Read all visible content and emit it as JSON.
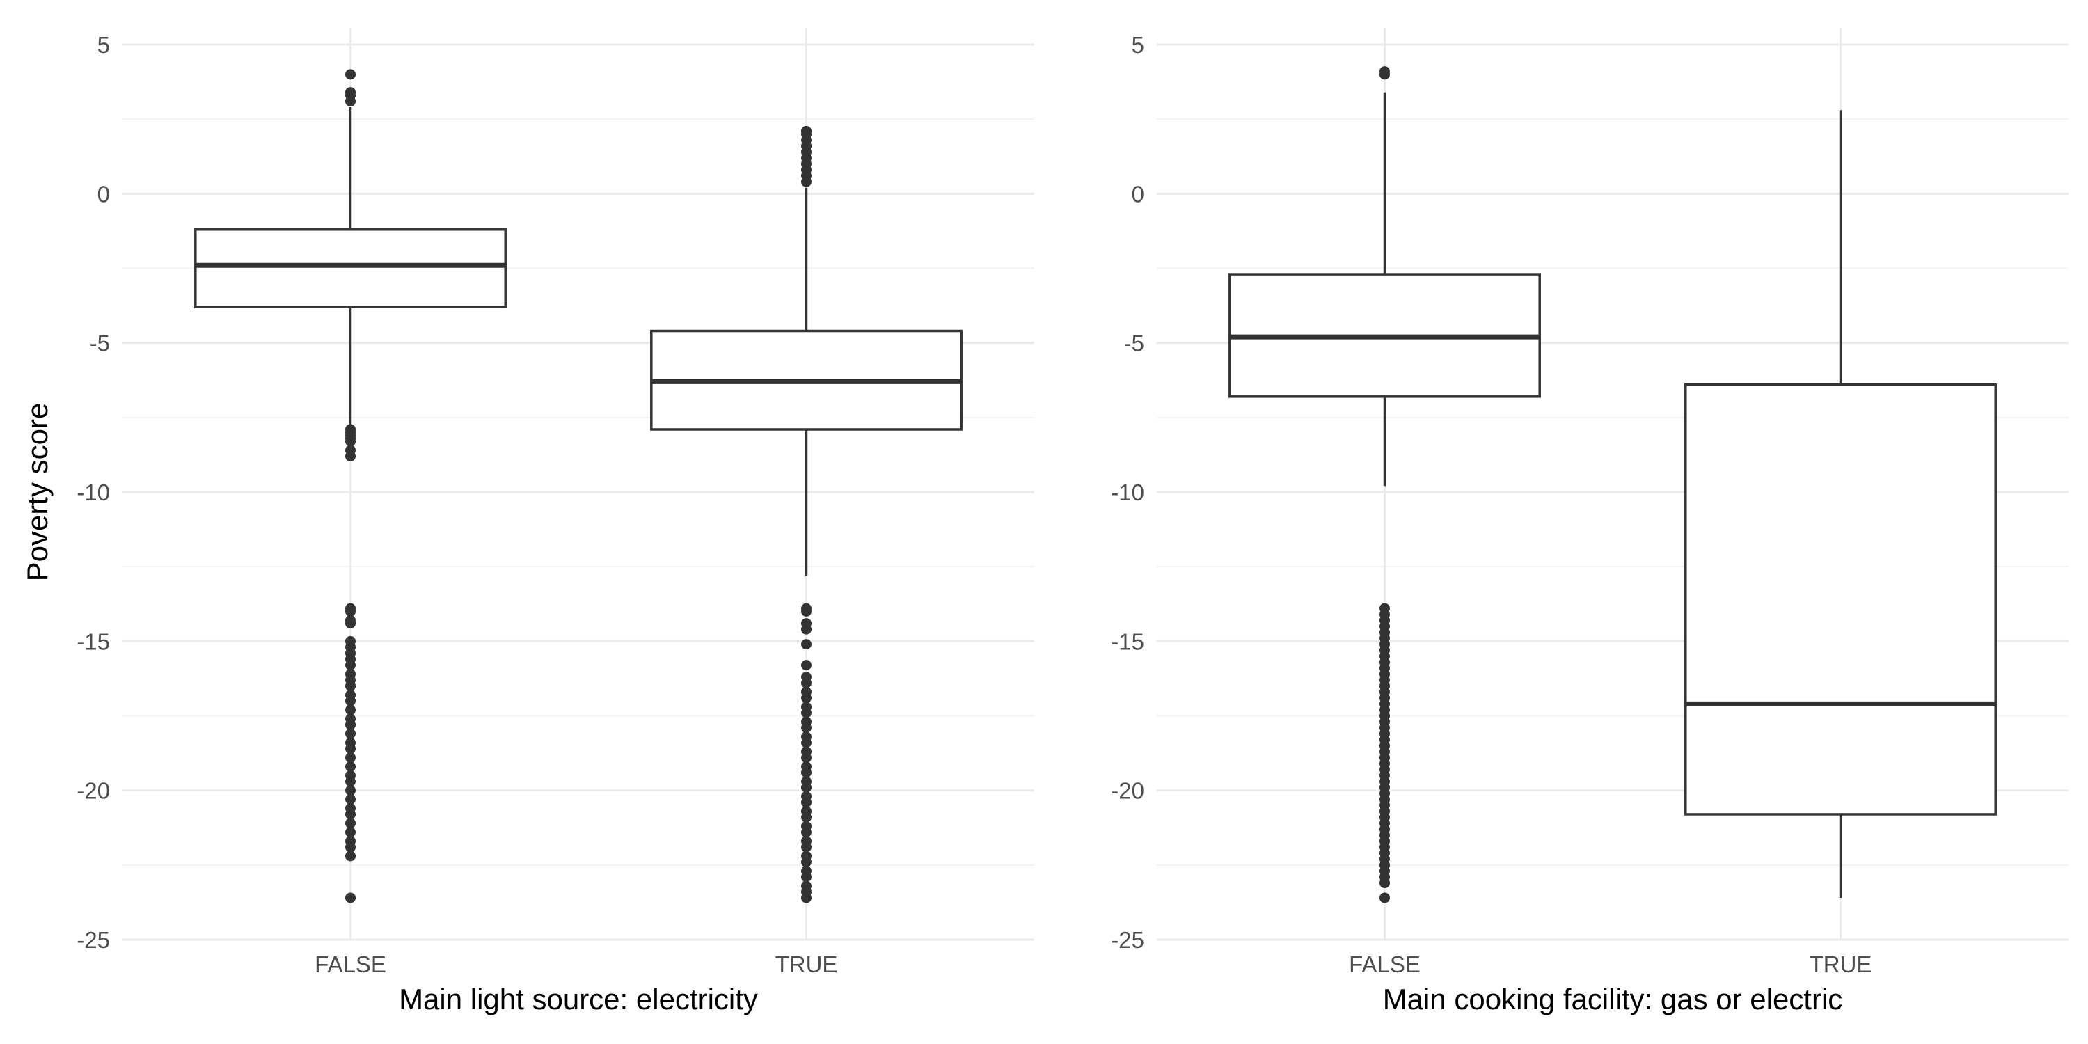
{
  "colors": {
    "grid_major": "#ebebeb",
    "grid_minor": "#f3f3f3",
    "box_stroke": "#333333",
    "outlier": "#333333",
    "background": "#ffffff"
  },
  "chart_data": [
    {
      "type": "boxplot",
      "xlabel": "Main light source: electricity",
      "ylabel": "Poverty score",
      "categories": [
        "FALSE",
        "TRUE"
      ],
      "ylim": [
        -25,
        5
      ],
      "yticks": [
        5,
        0,
        -5,
        -10,
        -15,
        -20,
        -25
      ],
      "grid": true,
      "boxes": [
        {
          "category": "FALSE",
          "lower_whisker": -8.7,
          "q1": -3.8,
          "median": -2.4,
          "q3": -1.2,
          "upper_whisker": 2.9,
          "outliers": [
            4.0,
            3.4,
            3.3,
            3.1,
            -7.9,
            -8.0,
            -8.1,
            -8.2,
            -8.3,
            -8.6,
            -8.8,
            -13.9,
            -14.0,
            -14.3,
            -14.4,
            -15.0,
            -15.2,
            -15.4,
            -15.6,
            -15.8,
            -16.1,
            -16.3,
            -16.5,
            -16.8,
            -17.0,
            -17.3,
            -17.6,
            -17.8,
            -18.1,
            -18.4,
            -18.6,
            -18.9,
            -19.2,
            -19.5,
            -19.7,
            -20.0,
            -20.3,
            -20.6,
            -20.8,
            -21.1,
            -21.4,
            -21.7,
            -21.9,
            -22.2,
            -23.6
          ]
        },
        {
          "category": "TRUE",
          "lower_whisker": -12.8,
          "q1": -7.9,
          "median": -6.3,
          "q3": -4.6,
          "upper_whisker": 0.2,
          "outliers": [
            2.1,
            2.0,
            1.8,
            1.6,
            1.4,
            1.2,
            1.0,
            0.8,
            0.6,
            0.4,
            -13.9,
            -14.0,
            -14.4,
            -14.6,
            -15.1,
            -15.8,
            -16.2,
            -16.4,
            -16.7,
            -16.9,
            -17.2,
            -17.4,
            -17.7,
            -17.9,
            -18.2,
            -18.4,
            -18.7,
            -18.9,
            -19.2,
            -19.4,
            -19.7,
            -19.9,
            -20.2,
            -20.4,
            -20.7,
            -20.9,
            -21.2,
            -21.4,
            -21.7,
            -21.9,
            -22.2,
            -22.4,
            -22.7,
            -22.9,
            -23.2,
            -23.4,
            -23.6
          ]
        }
      ]
    },
    {
      "type": "boxplot",
      "xlabel": "Main cooking facility: gas or electric",
      "ylabel": "",
      "categories": [
        "FALSE",
        "TRUE"
      ],
      "ylim": [
        -25,
        5
      ],
      "yticks": [
        5,
        0,
        -5,
        -10,
        -15,
        -20,
        -25
      ],
      "grid": true,
      "boxes": [
        {
          "category": "FALSE",
          "lower_whisker": -9.8,
          "q1": -6.8,
          "median": -4.8,
          "q3": -2.7,
          "upper_whisker": 3.4,
          "outliers": [
            4.1,
            4.0,
            -13.9,
            -14.1,
            -14.3,
            -14.5,
            -14.7,
            -14.9,
            -15.1,
            -15.3,
            -15.5,
            -15.7,
            -15.9,
            -16.1,
            -16.3,
            -16.5,
            -16.7,
            -16.9,
            -17.1,
            -17.3,
            -17.5,
            -17.7,
            -17.9,
            -18.1,
            -18.3,
            -18.5,
            -18.7,
            -18.9,
            -19.1,
            -19.3,
            -19.5,
            -19.7,
            -19.9,
            -20.1,
            -20.3,
            -20.5,
            -20.7,
            -20.9,
            -21.1,
            -21.3,
            -21.5,
            -21.7,
            -21.9,
            -22.1,
            -22.3,
            -22.5,
            -22.7,
            -22.9,
            -23.1,
            -23.6
          ]
        },
        {
          "category": "TRUE",
          "lower_whisker": -23.6,
          "q1": -20.8,
          "median": -17.1,
          "q3": -6.4,
          "upper_whisker": 2.8,
          "outliers": []
        }
      ]
    }
  ]
}
